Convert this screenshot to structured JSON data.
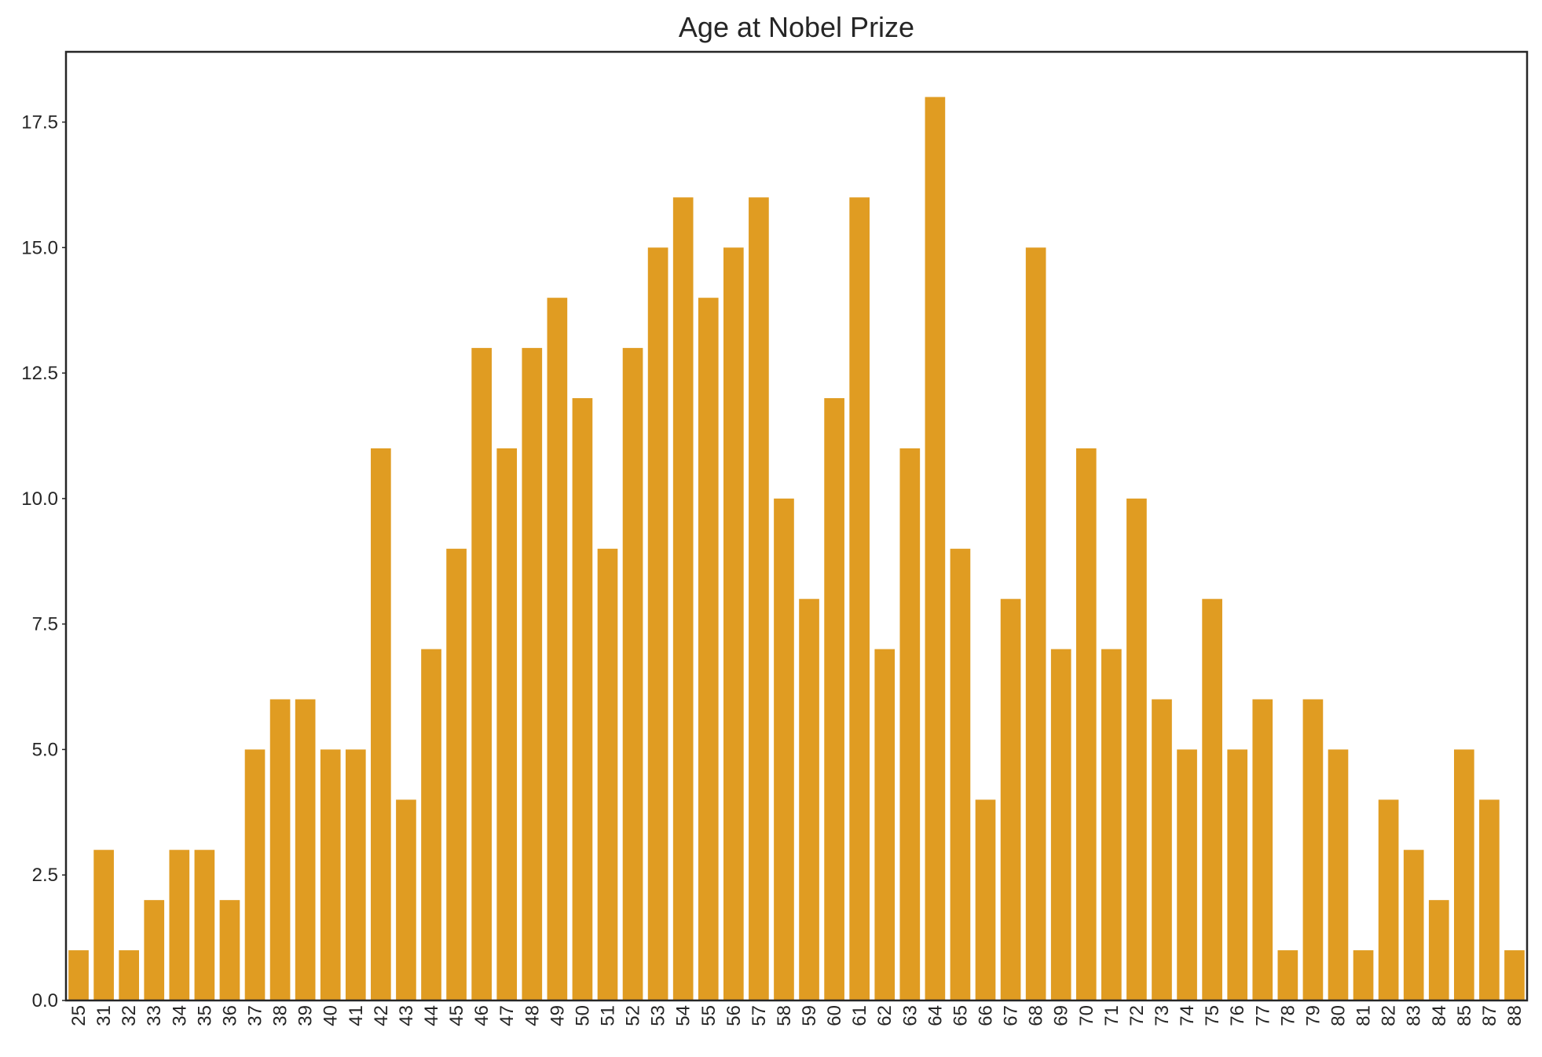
{
  "chart_data": {
    "type": "bar",
    "title": "Age at Nobel Prize",
    "xlabel": "",
    "ylabel": "",
    "categories": [
      "25",
      "31",
      "32",
      "33",
      "34",
      "35",
      "36",
      "37",
      "38",
      "39",
      "40",
      "41",
      "42",
      "43",
      "44",
      "45",
      "46",
      "47",
      "48",
      "49",
      "50",
      "51",
      "52",
      "53",
      "54",
      "55",
      "56",
      "57",
      "58",
      "59",
      "60",
      "61",
      "62",
      "63",
      "64",
      "65",
      "66",
      "67",
      "68",
      "69",
      "70",
      "71",
      "72",
      "73",
      "74",
      "75",
      "76",
      "77",
      "78",
      "79",
      "80",
      "81",
      "82",
      "83",
      "84",
      "85",
      "87",
      "88"
    ],
    "values": [
      1,
      3,
      1,
      2,
      3,
      3,
      2,
      5,
      6,
      6,
      5,
      5,
      11,
      4,
      7,
      9,
      13,
      11,
      13,
      14,
      12,
      9,
      13,
      15,
      16,
      14,
      15,
      16,
      10,
      8,
      12,
      16,
      7,
      11,
      18,
      9,
      4,
      8,
      15,
      7,
      11,
      7,
      10,
      6,
      5,
      8,
      5,
      6,
      1,
      6,
      5,
      1,
      4,
      3,
      2,
      5,
      4,
      1
    ],
    "ylim": [
      0,
      18.9
    ],
    "yticks": [
      "0.0",
      "2.5",
      "5.0",
      "7.5",
      "10.0",
      "12.5",
      "15.0",
      "17.5"
    ],
    "grid": false,
    "colors": {
      "bar": "#e09c22",
      "frame": "#262626",
      "text": "#262626",
      "background": "#ffffff"
    }
  }
}
